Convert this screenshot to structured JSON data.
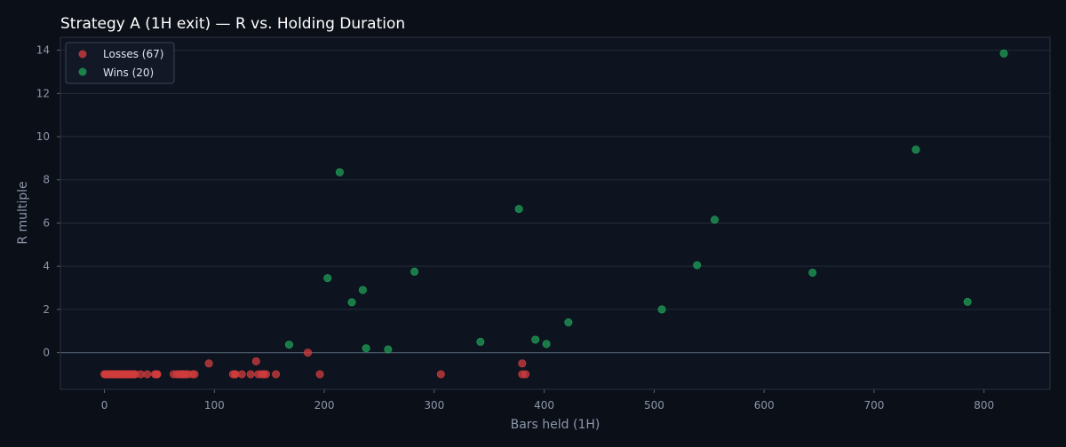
{
  "chart_data": {
    "type": "scatter",
    "title": "Strategy A (1H exit) — R vs. Holding Duration",
    "xlabel": "Bars held (1H)",
    "ylabel": "R multiple",
    "xlim": [
      -40,
      860
    ],
    "ylim": [
      -1.7,
      14.6
    ],
    "xticks": [
      0,
      100,
      200,
      300,
      400,
      500,
      600,
      700,
      800
    ],
    "yticks": [
      0,
      2,
      4,
      6,
      8,
      10,
      12,
      14
    ],
    "grid": "horizontal",
    "zero_line": true,
    "legend_position": "top-left",
    "colors": {
      "background": "#0b0f18",
      "plot_bg": "#0d1420",
      "grid": "#222b38",
      "zero_line": "#4a5566",
      "losses": "#d03c3c",
      "wins": "#1f9e55"
    },
    "series": [
      {
        "name": "Losses (67)",
        "color": "#d03c3c",
        "points": [
          [
            0,
            -1
          ],
          [
            1,
            -1
          ],
          [
            2,
            -1
          ],
          [
            3,
            -1
          ],
          [
            4,
            -1
          ],
          [
            5,
            -1
          ],
          [
            6,
            -1
          ],
          [
            7,
            -1
          ],
          [
            8,
            -1
          ],
          [
            9,
            -1
          ],
          [
            10,
            -1
          ],
          [
            11,
            -1
          ],
          [
            12,
            -1
          ],
          [
            13,
            -1
          ],
          [
            14,
            -1
          ],
          [
            15,
            -1
          ],
          [
            16,
            -1
          ],
          [
            17,
            -1
          ],
          [
            18,
            -1
          ],
          [
            19,
            -1
          ],
          [
            20,
            -1
          ],
          [
            21,
            -1
          ],
          [
            22,
            -1
          ],
          [
            23,
            -1
          ],
          [
            24,
            -1
          ],
          [
            25,
            -1
          ],
          [
            26,
            -1
          ],
          [
            27,
            -1
          ],
          [
            28,
            -1
          ],
          [
            33,
            -1
          ],
          [
            39,
            -1
          ],
          [
            46,
            -1
          ],
          [
            47,
            -1
          ],
          [
            48,
            -1
          ],
          [
            63,
            -1
          ],
          [
            66,
            -1
          ],
          [
            68,
            -1
          ],
          [
            70,
            -1
          ],
          [
            72,
            -1
          ],
          [
            74,
            -1
          ],
          [
            76,
            -1
          ],
          [
            80,
            -1
          ],
          [
            82,
            -1
          ],
          [
            95,
            -0.5
          ],
          [
            117,
            -1
          ],
          [
            119,
            -1
          ],
          [
            125,
            -1
          ],
          [
            133,
            -1
          ],
          [
            138,
            -0.4
          ],
          [
            140,
            -1
          ],
          [
            143,
            -1
          ],
          [
            145,
            -1
          ],
          [
            147,
            -1
          ],
          [
            156,
            -1
          ],
          [
            185,
            0
          ],
          [
            196,
            -1
          ],
          [
            306,
            -1
          ],
          [
            380,
            -1
          ],
          [
            380,
            -0.5
          ],
          [
            383,
            -1
          ],
          [
            2,
            -1
          ],
          [
            10,
            -1
          ],
          [
            18,
            -1
          ],
          [
            26,
            -1
          ],
          [
            48,
            -1
          ],
          [
            71,
            -1
          ],
          [
            119,
            -1
          ]
        ]
      },
      {
        "name": "Wins (20)",
        "color": "#1f9e55",
        "points": [
          [
            168,
            0.37
          ],
          [
            203,
            3.45
          ],
          [
            214,
            8.35
          ],
          [
            225,
            2.33
          ],
          [
            235,
            2.9
          ],
          [
            238,
            0.2
          ],
          [
            258,
            0.15
          ],
          [
            282,
            3.75
          ],
          [
            342,
            0.5
          ],
          [
            377,
            6.65
          ],
          [
            392,
            0.6
          ],
          [
            402,
            0.4
          ],
          [
            422,
            1.4
          ],
          [
            507,
            2.0
          ],
          [
            539,
            4.05
          ],
          [
            555,
            6.15
          ],
          [
            644,
            3.7
          ],
          [
            738,
            9.4
          ],
          [
            785,
            2.35
          ],
          [
            818,
            13.85
          ]
        ]
      }
    ]
  }
}
